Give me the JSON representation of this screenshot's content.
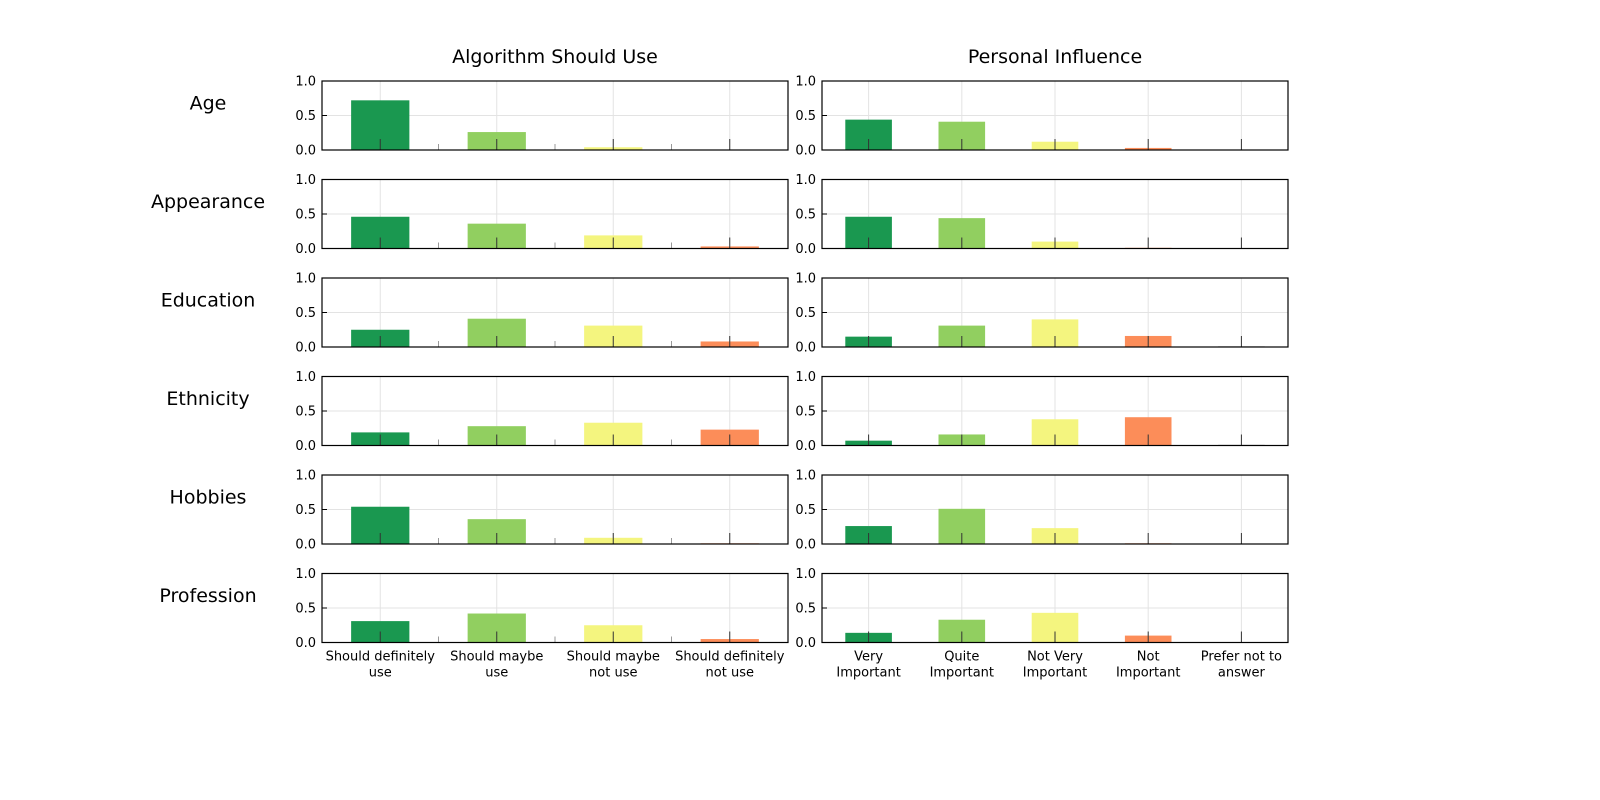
{
  "chart_data": {
    "type": "bar",
    "layout": "grid of small multiples: 6 rows x 2 columns",
    "row_labels": [
      "Age",
      "Appearance",
      "Education",
      "Ethnicity",
      "Hobbies",
      "Profession"
    ],
    "ylim": [
      0,
      1.0
    ],
    "yticks": [
      "0.0",
      "0.5",
      "1.0"
    ],
    "grid": true,
    "panels": [
      {
        "title": "Algorithm Should Use",
        "categories": [
          [
            "Should definitely",
            "use"
          ],
          [
            "Should maybe",
            "use"
          ],
          [
            "Should maybe",
            "not use"
          ],
          [
            "Should definitely",
            "not use"
          ]
        ],
        "colors": [
          "#1a9850",
          "#91cf60",
          "#f4f57f",
          "#fc8d59"
        ],
        "values": {
          "Age": [
            0.72,
            0.26,
            0.04,
            0.0
          ],
          "Appearance": [
            0.46,
            0.36,
            0.19,
            0.03
          ],
          "Education": [
            0.25,
            0.41,
            0.31,
            0.08
          ],
          "Ethnicity": [
            0.19,
            0.28,
            0.33,
            0.23
          ],
          "Hobbies": [
            0.54,
            0.36,
            0.09,
            0.01
          ],
          "Profession": [
            0.31,
            0.42,
            0.25,
            0.05
          ]
        }
      },
      {
        "title": "Personal Influence",
        "categories": [
          [
            "Very",
            "Important"
          ],
          [
            "Quite",
            "Important"
          ],
          [
            "Not Very",
            "Important"
          ],
          [
            "Not",
            "Important"
          ],
          [
            "Prefer not to",
            "answer"
          ]
        ],
        "colors": [
          "#1a9850",
          "#91cf60",
          "#f4f57f",
          "#fc8d59",
          "#aaaaaa"
        ],
        "values": {
          "Age": [
            0.44,
            0.41,
            0.12,
            0.03,
            0.0
          ],
          "Appearance": [
            0.46,
            0.44,
            0.1,
            0.01,
            0.0
          ],
          "Education": [
            0.15,
            0.31,
            0.4,
            0.16,
            0.01
          ],
          "Ethnicity": [
            0.07,
            0.16,
            0.38,
            0.41,
            0.01
          ],
          "Hobbies": [
            0.26,
            0.51,
            0.23,
            0.01,
            0.0
          ],
          "Profession": [
            0.14,
            0.33,
            0.43,
            0.1,
            0.0
          ]
        }
      }
    ]
  }
}
